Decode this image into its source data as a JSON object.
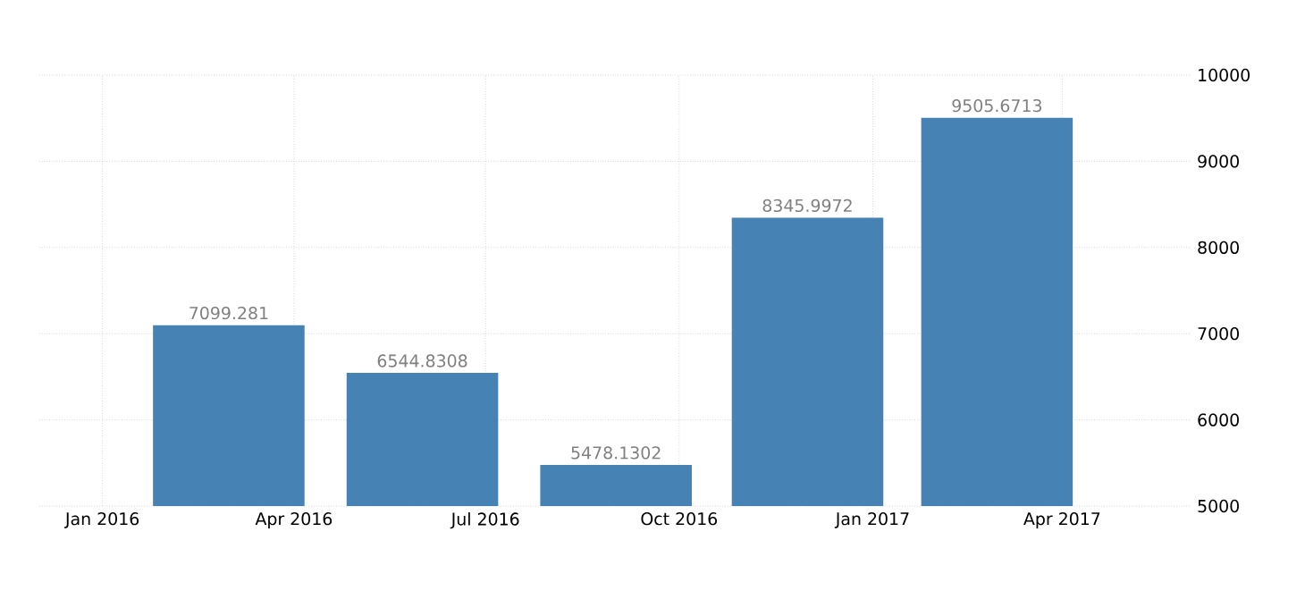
{
  "chart_data": {
    "type": "bar",
    "x": [
      "2016-03-01",
      "2016-06-01",
      "2016-09-01",
      "2016-12-01",
      "2017-03-01"
    ],
    "values": [
      7099.281,
      6544.8308,
      5478.1302,
      8345.9972,
      9505.6713
    ],
    "color": "#4682b4",
    "data_labels": true,
    "xlim": [
      "2015-12-02",
      "2017-06-01"
    ],
    "xticks": [
      {
        "value": "2016-01-01",
        "label": "Jan 2016"
      },
      {
        "value": "2016-04-01",
        "label": "Apr 2016"
      },
      {
        "value": "2016-07-01",
        "label": "Jul 2016"
      },
      {
        "value": "2016-10-01",
        "label": "Oct 2016"
      },
      {
        "value": "2017-01-01",
        "label": "Jan 2017"
      },
      {
        "value": "2017-04-01",
        "label": "Apr 2017"
      }
    ],
    "ylim": [
      5000,
      10000
    ],
    "yticks": [
      5000,
      6000,
      7000,
      8000,
      9000,
      10000
    ],
    "grid": true
  }
}
